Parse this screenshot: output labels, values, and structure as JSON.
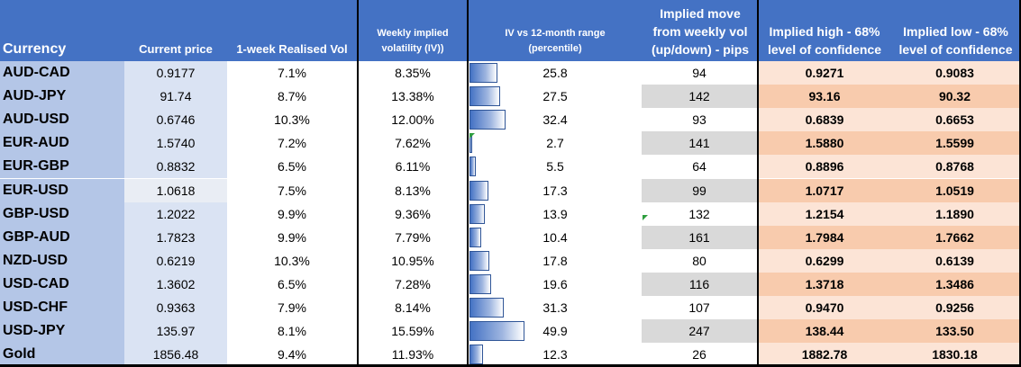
{
  "headers": {
    "currency": "Currency",
    "current_price": "Current price",
    "realised_vol": "1-week Realised Vol",
    "implied_vol": "Weekly implied\nvolatility (IV))",
    "iv_range": "IV vs  12-month  range\n(percentile)",
    "implied_move": "Implied move\nfrom weekly vol\n(up/down) - pips",
    "implied_high": "Implied high -  68%\nlevel of confidence",
    "implied_low": "Implied low -  68%\nlevel of confidence"
  },
  "colors": {
    "header_bg": "#4472c4",
    "currency_bg": "#b4c6e7",
    "price_bg": "#dae3f3",
    "move_alt_bg": "#d9d9d9",
    "high_low_light": "#fce4d6",
    "high_low_dark": "#f8cbad"
  },
  "rows": [
    {
      "currency": "AUD-CAD",
      "price": "0.9177",
      "rv": "7.1%",
      "iv": "8.35%",
      "pct": "25.8",
      "pct_value": 25.8,
      "move": "94",
      "high": "0.9271",
      "low": "0.9083"
    },
    {
      "currency": "AUD-JPY",
      "price": "91.74",
      "rv": "8.7%",
      "iv": "13.38%",
      "pct": "27.5",
      "pct_value": 27.5,
      "move": "142",
      "high": "93.16",
      "low": "90.32"
    },
    {
      "currency": "AUD-USD",
      "price": "0.6746",
      "rv": "10.3%",
      "iv": "12.00%",
      "pct": "32.4",
      "pct_value": 32.4,
      "move": "93",
      "high": "0.6839",
      "low": "0.6653"
    },
    {
      "currency": "EUR-AUD",
      "price": "1.5740",
      "rv": "7.2%",
      "iv": "7.62%",
      "pct": "2.7",
      "pct_value": 2.7,
      "move": "141",
      "high": "1.5880",
      "low": "1.5599"
    },
    {
      "currency": "EUR-GBP",
      "price": "0.8832",
      "rv": "6.5%",
      "iv": "6.11%",
      "pct": "5.5",
      "pct_value": 5.5,
      "move": "64",
      "high": "0.8896",
      "low": "0.8768"
    },
    {
      "currency": "EUR-USD",
      "price": "1.0618",
      "rv": "7.5%",
      "iv": "8.13%",
      "pct": "17.3",
      "pct_value": 17.3,
      "move": "99",
      "high": "1.0717",
      "low": "1.0519"
    },
    {
      "currency": "GBP-USD",
      "price": "1.2022",
      "rv": "9.9%",
      "iv": "9.36%",
      "pct": "13.9",
      "pct_value": 13.9,
      "move": "132",
      "high": "1.2154",
      "low": "1.1890"
    },
    {
      "currency": "GBP-AUD",
      "price": "1.7823",
      "rv": "9.9%",
      "iv": "7.79%",
      "pct": "10.4",
      "pct_value": 10.4,
      "move": "161",
      "high": "1.7984",
      "low": "1.7662"
    },
    {
      "currency": "NZD-USD",
      "price": "0.6219",
      "rv": "10.3%",
      "iv": "10.95%",
      "pct": "17.8",
      "pct_value": 17.8,
      "move": "80",
      "high": "0.6299",
      "low": "0.6139"
    },
    {
      "currency": "USD-CAD",
      "price": "1.3602",
      "rv": "6.5%",
      "iv": "7.28%",
      "pct": "19.6",
      "pct_value": 19.6,
      "move": "116",
      "high": "1.3718",
      "low": "1.3486"
    },
    {
      "currency": "USD-CHF",
      "price": "0.9363",
      "rv": "7.9%",
      "iv": "8.14%",
      "pct": "31.3",
      "pct_value": 31.3,
      "move": "107",
      "high": "0.9470",
      "low": "0.9256"
    },
    {
      "currency": "USD-JPY",
      "price": "135.97",
      "rv": "8.1%",
      "iv": "15.59%",
      "pct": "49.9",
      "pct_value": 49.9,
      "move": "247",
      "high": "138.44",
      "low": "133.50"
    },
    {
      "currency": "Gold",
      "price": "1856.48",
      "rv": "9.4%",
      "iv": "11.93%",
      "pct": "12.3",
      "pct_value": 12.3,
      "move": "26",
      "high": "1882.78",
      "low": "1830.18"
    }
  ]
}
